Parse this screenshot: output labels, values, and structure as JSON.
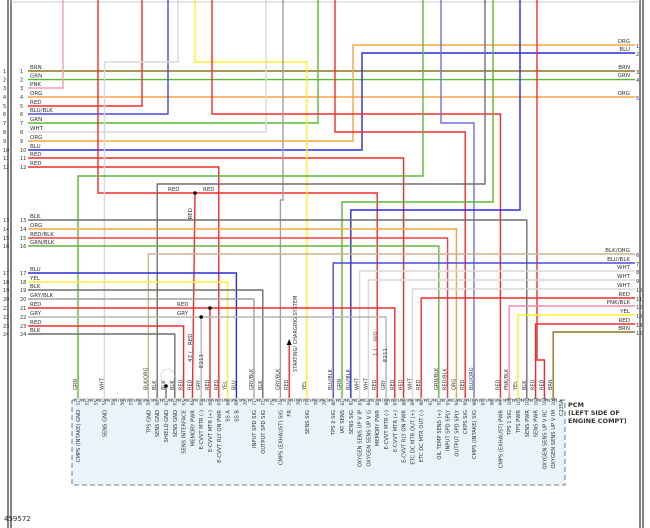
{
  "figure_id": "459572",
  "pcm_label": "PCM\n(LEFT SIDE OF\nENGINE COMPT)",
  "connector_id": "C235A",
  "starting_charging_label": "STARTING/ CHARGING SYSTEM",
  "splice_labels": {
    "red_left": "RED",
    "red_right": "RED",
    "red_down": "RED",
    "red_mid": "RED",
    "gry_mid": "GRY",
    "e211_a_pin": "43",
    "e211_a": "E211",
    "e211_b_pin": "1",
    "e211_b": "E211",
    "e211_b_wire": "RED"
  },
  "colors": {
    "RED": "#f52a2a",
    "BLU": "#2b2bdd",
    "GRN": "#5bb833",
    "ORG": "#f7a347",
    "BRN": "#8f7420",
    "PNK": "#f59bb8",
    "WHT": "#d8d8d8",
    "GRY": "#b5b5b5",
    "BLK": "#6f6f6f",
    "YEL": "#fff02a",
    "BLU/BLK": "#4848dd",
    "BLK/ORG": "#c9b38e",
    "RED/BLK": "#f04040",
    "GRN/BLK": "#66b044",
    "GRY/BLK": "#a0a0a0",
    "PNK/BLK": "#f08aa8",
    "BLU/ORG": "#7070e0",
    "shade": "#e8f4fa"
  },
  "left_connector": [
    {
      "num": "1",
      "wire": "BRN"
    },
    {
      "num": "2",
      "wire": "GRN"
    },
    {
      "num": "3",
      "wire": "PNK"
    },
    {
      "num": "4",
      "wire": "ORG"
    },
    {
      "num": "5",
      "wire": "RED"
    },
    {
      "num": "6",
      "wire": "BLU/BLK"
    },
    {
      "num": "7",
      "wire": "GRN"
    },
    {
      "num": "8",
      "wire": "WHT"
    },
    {
      "num": "9",
      "wire": "ORG"
    },
    {
      "num": "10",
      "wire": "BLU"
    },
    {
      "num": "11",
      "wire": "RED"
    },
    {
      "num": "12",
      "wire": "RED"
    },
    {
      "num": "13",
      "wire": "BLK"
    },
    {
      "num": "14",
      "wire": "ORG"
    },
    {
      "num": "15",
      "wire": "RED/BLK"
    },
    {
      "num": "16",
      "wire": "GRN/BLK"
    },
    {
      "num": "17",
      "wire": "BLU"
    },
    {
      "num": "18",
      "wire": "YEL"
    },
    {
      "num": "19",
      "wire": "BLK"
    },
    {
      "num": "20",
      "wire": "GRY/BLK"
    },
    {
      "num": "21",
      "wire": "RED"
    },
    {
      "num": "22",
      "wire": "GRY"
    },
    {
      "num": "23",
      "wire": "RED"
    },
    {
      "num": "24",
      "wire": "BLK"
    }
  ],
  "right_connector": [
    {
      "num": "1",
      "wire": "ORG"
    },
    {
      "num": "2",
      "wire": "BLU"
    },
    {
      "num": "3",
      "wire": "BRN"
    },
    {
      "num": "4",
      "wire": "GRN"
    },
    {
      "num": "5",
      "wire": "ORG"
    },
    {
      "num": "6",
      "wire": "BLK/ORG"
    },
    {
      "num": "7",
      "wire": "BLU/BLK"
    },
    {
      "num": "8",
      "wire": "WHT"
    },
    {
      "num": "9",
      "wire": "WHT"
    },
    {
      "num": "10",
      "wire": "WHT"
    },
    {
      "num": "11",
      "wire": "RED"
    },
    {
      "num": "12",
      "wire": "PNK/BLK"
    },
    {
      "num": "13",
      "wire": "YEL"
    },
    {
      "num": "14",
      "wire": "RED"
    },
    {
      "num": "15",
      "wire": "BRN"
    }
  ],
  "pcm_pins": [
    {
      "num": "51",
      "wire": "GRN",
      "func": "CMPS (INTAKE) GND"
    },
    {
      "num": "52",
      "wire": "",
      "func": ""
    },
    {
      "num": "53",
      "wire": "",
      "func": ""
    },
    {
      "num": "54",
      "wire": "WHT",
      "func": "SENS GND"
    },
    {
      "num": "55",
      "wire": "",
      "func": ""
    },
    {
      "num": "56",
      "wire": "",
      "func": ""
    },
    {
      "num": "57",
      "wire": "",
      "func": ""
    },
    {
      "num": "58",
      "wire": "",
      "func": ""
    },
    {
      "num": "59",
      "wire": "BLK/ORG",
      "func": "TPS GND"
    },
    {
      "num": "60",
      "wire": "BLK",
      "func": "SENS GND"
    },
    {
      "num": "61",
      "wire": "BLK",
      "func": "SHIELD GND"
    },
    {
      "num": "62",
      "wire": "BLK",
      "func": "SENS GND"
    },
    {
      "num": "63",
      "wire": "RED",
      "func": "SENS INTERFACE"
    },
    {
      "num": "64",
      "wire": "RED",
      "func": "MEMORY PWR"
    },
    {
      "num": "65",
      "wire": "GRY",
      "func": "E-CVVT MTR (-)"
    },
    {
      "num": "66",
      "wire": "RED",
      "func": "E-CVVT MTR (+)"
    },
    {
      "num": "67",
      "wire": "RED",
      "func": "E-CVVT RLY ON PWR"
    },
    {
      "num": "68",
      "wire": "YEL",
      "func": "SS A"
    },
    {
      "num": "69",
      "wire": "BLU",
      "func": "SS B"
    },
    {
      "num": "70",
      "wire": "",
      "func": ""
    },
    {
      "num": "71",
      "wire": "GRY/BLK",
      "func": "INPUT SPD SIG"
    },
    {
      "num": "72",
      "wire": "BLK",
      "func": "OUTPUT SPD SIG"
    },
    {
      "num": "73",
      "wire": "",
      "func": ""
    },
    {
      "num": "74",
      "wire": "GRY/BLK",
      "func": "CMPS (EXHAUST) SIG"
    },
    {
      "num": "75",
      "wire": "RED",
      "func": "FR"
    },
    {
      "num": "76",
      "wire": "",
      "func": ""
    },
    {
      "num": "77",
      "wire": "YEL",
      "func": "SENS SIG"
    },
    {
      "num": "78",
      "wire": "",
      "func": ""
    },
    {
      "num": "79",
      "wire": "",
      "func": ""
    },
    {
      "num": "80",
      "wire": "BLU/BLK",
      "func": "TPS 2 SIG"
    },
    {
      "num": "81",
      "wire": "GRN",
      "func": "IAT SENS"
    },
    {
      "num": "82",
      "wire": "BLU/BLK",
      "func": "SENS SIG"
    },
    {
      "num": "83",
      "wire": "WHT",
      "func": "OXYGEN SENS UP V IP"
    },
    {
      "num": "84",
      "wire": "WHT",
      "func": "OXYGEN SENS UP V G"
    },
    {
      "num": "85",
      "wire": "RED",
      "func": "MEMORY PWR"
    },
    {
      "num": "86",
      "wire": "GRY",
      "func": "E-CVVT MTR (-)"
    },
    {
      "num": "87",
      "wire": "RED",
      "func": "E-CVVT MTR (+)"
    },
    {
      "num": "88",
      "wire": "RED",
      "func": "E-CVVT RLY ON PWR"
    },
    {
      "num": "89",
      "wire": "WHT",
      "func": "ETC DC MTR OUT (+)"
    },
    {
      "num": "90",
      "wire": "RED",
      "func": "ETC DC MTR OUT (-)"
    },
    {
      "num": "91",
      "wire": "",
      "func": ""
    },
    {
      "num": "92",
      "wire": "GRN/BLK",
      "func": "OIL TEMP SENS (+)"
    },
    {
      "num": "93",
      "wire": "RED/BLK",
      "func": "INPUT SPD SPLY"
    },
    {
      "num": "94",
      "wire": "ORG",
      "func": "OUTPUT SPD SPLY"
    },
    {
      "num": "95",
      "wire": "RED",
      "func": "CKPS SIG"
    },
    {
      "num": "96",
      "wire": "BLU/ORG",
      "func": "CMPS (INTAKE) SIG"
    },
    {
      "num": "97",
      "wire": "",
      "func": ""
    },
    {
      "num": "98",
      "wire": "",
      "func": ""
    },
    {
      "num": "99",
      "wire": "RED",
      "func": "CMPS (EXHAUST) PWR"
    },
    {
      "num": "100",
      "wire": "PNK/BLK",
      "func": "TPS 1 SIG"
    },
    {
      "num": "101",
      "wire": "YEL",
      "func": "TPS PWR"
    },
    {
      "num": "102",
      "wire": "BLK",
      "func": "SENS PWR"
    },
    {
      "num": "103",
      "wire": "RED",
      "func": "SENS PWR"
    },
    {
      "num": "104",
      "wire": "RED",
      "func": "OXYGEN SENS UP V RC"
    },
    {
      "num": "105",
      "wire": "BRN",
      "func": "OXYGEN SENS UP V IM"
    }
  ]
}
